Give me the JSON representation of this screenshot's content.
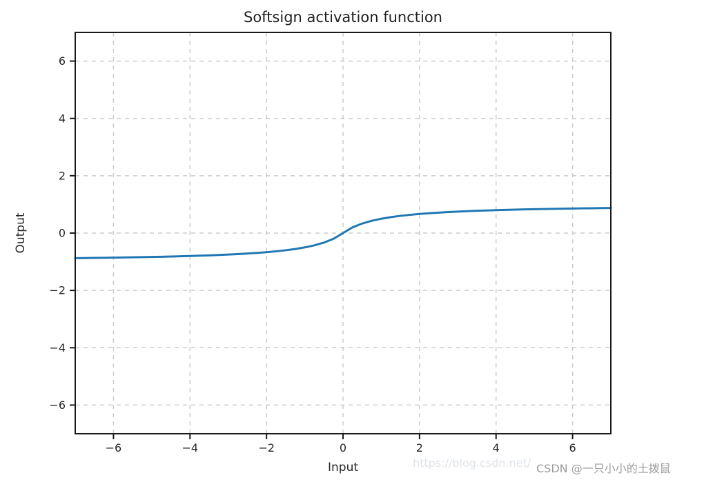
{
  "watermark": {
    "url_text": "https://blog.csdn.net/",
    "credit_text": "CSDN @一只小小的土拨鼠",
    "url_color": "#dfe3e8",
    "credit_color": "#9b9b9b"
  },
  "chart_data": {
    "type": "line",
    "title": "Softsign activation function",
    "xlabel": "Input",
    "ylabel": "Output",
    "xlim": [
      -7,
      7
    ],
    "ylim": [
      -7,
      7
    ],
    "xticks": [
      -6,
      -4,
      -2,
      0,
      2,
      4,
      6
    ],
    "xtick_labels": [
      "−6",
      "−4",
      "−2",
      "0",
      "2",
      "4",
      "6"
    ],
    "yticks": [
      -6,
      -4,
      -2,
      0,
      2,
      4,
      6
    ],
    "ytick_labels": [
      "−6",
      "−4",
      "−2",
      "0",
      "2",
      "4",
      "6"
    ],
    "grid": {
      "visible": true,
      "style": "dashed",
      "color": "#cccccc"
    },
    "spine_color": "#1a1a1a",
    "legend": "none",
    "series": [
      {
        "name": "softsign",
        "color": "#1f77b4",
        "linewidth": 3,
        "x": [
          -7,
          -6.75,
          -6.5,
          -6.25,
          -6,
          -5.75,
          -5.5,
          -5.25,
          -5,
          -4.75,
          -4.5,
          -4.25,
          -4,
          -3.75,
          -3.5,
          -3.25,
          -3,
          -2.75,
          -2.5,
          -2.25,
          -2,
          -1.75,
          -1.5,
          -1.25,
          -1,
          -0.75,
          -0.5,
          -0.25,
          0,
          0.25,
          0.5,
          0.75,
          1,
          1.25,
          1.5,
          1.75,
          2,
          2.25,
          2.5,
          2.75,
          3,
          3.25,
          3.5,
          3.75,
          4,
          4.25,
          4.5,
          4.75,
          5,
          5.25,
          5.5,
          5.75,
          6,
          6.25,
          6.5,
          6.75,
          7
        ],
        "values": [
          -0.875,
          -0.871,
          -0.867,
          -0.862,
          -0.857,
          -0.852,
          -0.846,
          -0.84,
          -0.833,
          -0.826,
          -0.818,
          -0.81,
          -0.8,
          -0.789,
          -0.778,
          -0.765,
          -0.75,
          -0.733,
          -0.714,
          -0.692,
          -0.667,
          -0.636,
          -0.6,
          -0.556,
          -0.5,
          -0.429,
          -0.333,
          -0.2,
          0,
          0.2,
          0.333,
          0.429,
          0.5,
          0.556,
          0.6,
          0.636,
          0.667,
          0.692,
          0.714,
          0.733,
          0.75,
          0.765,
          0.778,
          0.789,
          0.8,
          0.81,
          0.818,
          0.826,
          0.833,
          0.84,
          0.846,
          0.852,
          0.857,
          0.862,
          0.867,
          0.871,
          0.875
        ]
      }
    ]
  }
}
